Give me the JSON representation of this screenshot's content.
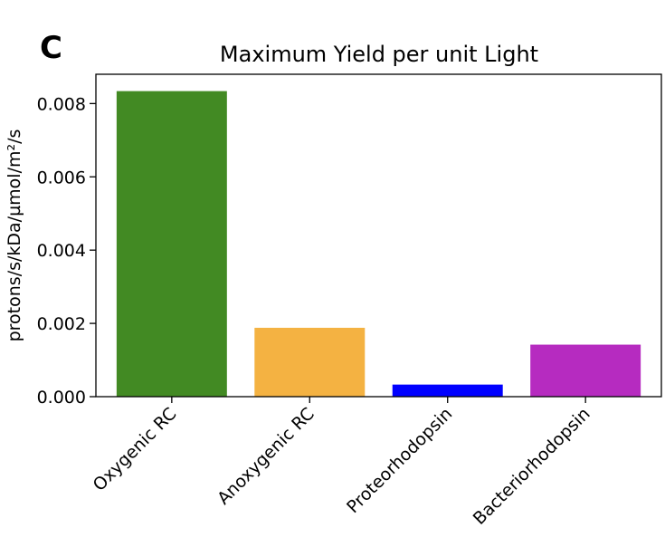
{
  "panel_label": "C",
  "chart_data": {
    "type": "bar",
    "title": "Maximum Yield per unit Light",
    "xlabel": "",
    "ylabel": "protons/s/kDa/µmol/m²/s",
    "categories": [
      "Oxygenic RC",
      "Anoxygenic RC",
      "Proteorhodopsin",
      "Bacteriorhodopsin"
    ],
    "values": [
      0.00834,
      0.00188,
      0.00033,
      0.00142
    ],
    "colors": [
      "#428a23",
      "#f4b242",
      "#0000ff",
      "#b62bc0"
    ],
    "ylim": [
      0,
      0.0088
    ],
    "yticks": [
      0,
      0.002,
      0.004,
      0.006,
      0.008
    ],
    "ytick_labels": [
      "0.000",
      "0.002",
      "0.004",
      "0.006",
      "0.008"
    ],
    "grid": false,
    "legend": "none"
  }
}
